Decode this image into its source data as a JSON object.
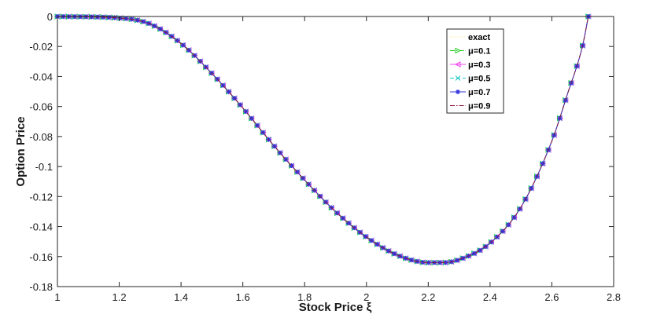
{
  "chart_data": {
    "type": "line",
    "xlabel": "Stock Price ξ",
    "ylabel": "Option Price",
    "xlim": [
      1,
      2.8
    ],
    "ylim": [
      -0.18,
      0
    ],
    "xticks": [
      1,
      1.2,
      1.4,
      1.6,
      1.8,
      2,
      2.2,
      2.4,
      2.6,
      2.8
    ],
    "xtick_labels": [
      "1",
      "1.2",
      "1.4",
      "1.6",
      "1.8",
      "2",
      "2.2",
      "2.4",
      "2.6",
      "2.8"
    ],
    "yticks": [
      0,
      -0.02,
      -0.04,
      -0.06,
      -0.08,
      -0.1,
      -0.12,
      -0.14,
      -0.16,
      -0.18
    ],
    "ytick_labels": [
      "0",
      "-0.02",
      "-0.04",
      "-0.06",
      "-0.08",
      "-0.1",
      "-0.12",
      "-0.14",
      "-0.16",
      "-0.18"
    ],
    "grid": false,
    "legend_position": "top-right",
    "x": [
      1.0,
      1.2,
      1.3,
      1.4,
      1.5,
      1.6,
      1.7,
      1.8,
      1.9,
      2.0,
      2.1,
      2.2,
      2.25,
      2.3,
      2.4,
      2.5,
      2.6,
      2.65,
      2.7,
      2.718
    ],
    "series": [
      {
        "name": "exact",
        "color": "#ffdd55",
        "style": "dotted",
        "marker": "none",
        "values": [
          0,
          -0.001,
          -0.005,
          -0.018,
          -0.038,
          -0.061,
          -0.086,
          -0.109,
          -0.13,
          -0.147,
          -0.159,
          -0.164,
          -0.164,
          -0.162,
          -0.151,
          -0.127,
          -0.083,
          -0.052,
          -0.019,
          0
        ]
      },
      {
        "name": "μ=0.1",
        "color": "#22cc22",
        "style": "dashdot",
        "marker": "triangle-right",
        "values": [
          0,
          -0.001,
          -0.005,
          -0.018,
          -0.038,
          -0.061,
          -0.086,
          -0.109,
          -0.13,
          -0.147,
          -0.159,
          -0.164,
          -0.164,
          -0.162,
          -0.151,
          -0.127,
          -0.083,
          -0.052,
          -0.019,
          0
        ]
      },
      {
        "name": "μ=0.3",
        "color": "#ee44ee",
        "style": "solid",
        "marker": "triangle-left",
        "values": [
          0,
          -0.001,
          -0.005,
          -0.018,
          -0.038,
          -0.061,
          -0.086,
          -0.109,
          -0.13,
          -0.147,
          -0.159,
          -0.164,
          -0.164,
          -0.162,
          -0.151,
          -0.127,
          -0.083,
          -0.052,
          -0.019,
          0
        ]
      },
      {
        "name": "μ=0.5",
        "color": "#22cccc",
        "style": "dashed",
        "marker": "x",
        "values": [
          0,
          -0.001,
          -0.005,
          -0.018,
          -0.038,
          -0.061,
          -0.086,
          -0.109,
          -0.13,
          -0.147,
          -0.159,
          -0.164,
          -0.164,
          -0.162,
          -0.151,
          -0.127,
          -0.083,
          -0.052,
          -0.019,
          0
        ]
      },
      {
        "name": "μ=0.7",
        "color": "#3333dd",
        "style": "solid",
        "marker": "star",
        "values": [
          0,
          -0.001,
          -0.005,
          -0.018,
          -0.038,
          -0.061,
          -0.086,
          -0.109,
          -0.13,
          -0.147,
          -0.159,
          -0.164,
          -0.164,
          -0.162,
          -0.151,
          -0.127,
          -0.083,
          -0.052,
          -0.019,
          0
        ]
      },
      {
        "name": "μ=0.9",
        "color": "#8b1a3a",
        "style": "dashdot",
        "marker": "none",
        "values": [
          0,
          -0.001,
          -0.005,
          -0.018,
          -0.038,
          -0.061,
          -0.086,
          -0.109,
          -0.13,
          -0.147,
          -0.159,
          -0.164,
          -0.164,
          -0.162,
          -0.151,
          -0.127,
          -0.083,
          -0.052,
          -0.019,
          0
        ]
      }
    ]
  }
}
